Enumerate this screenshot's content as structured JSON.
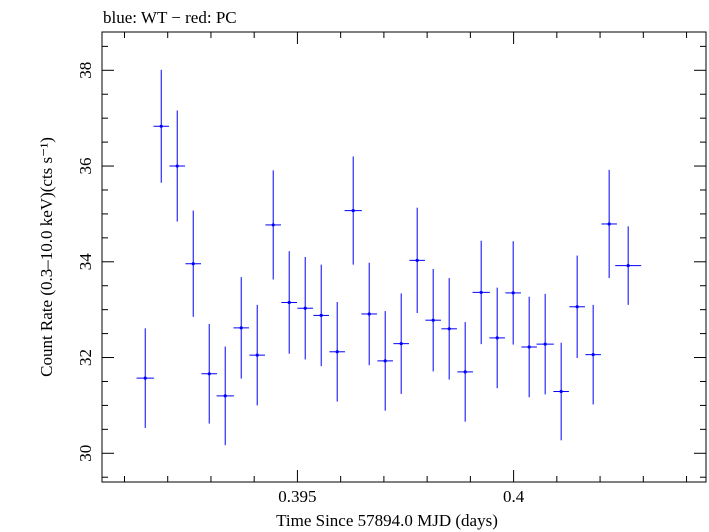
{
  "chart_data": {
    "type": "scatter",
    "title": "blue: WT − red: PC",
    "xlabel": "Time Since 57894.0 MJD (days)",
    "ylabel": "Count Rate (0.3–10.0 keV)(cts s⁻¹)",
    "xlim": [
      0.39048,
      0.40445
    ],
    "ylim": [
      29.4,
      38.8
    ],
    "xticks_major": [
      0.395,
      0.4
    ],
    "xtick_labels": [
      "0.395",
      "0.4"
    ],
    "xticks_minor": [
      0.391,
      0.392,
      0.393,
      0.394,
      0.396,
      0.397,
      0.398,
      0.399,
      0.401,
      0.402,
      0.403,
      0.404
    ],
    "yticks_major": [
      30,
      32,
      34,
      36,
      38
    ],
    "ytick_labels": [
      "30",
      "32",
      "34",
      "36",
      "38"
    ],
    "yticks_minor": [
      29.5,
      30.5,
      31,
      31.5,
      32.5,
      33,
      33.5,
      34.5,
      35,
      35.5,
      36.5,
      37,
      37.5,
      38.5
    ],
    "grid": false,
    "series": [
      {
        "color": "#0000ff",
        "points": [
          {
            "x": 0.39148,
            "xerr": 0.0002,
            "y": 31.57,
            "yerr": 1.04
          },
          {
            "x": 0.39185,
            "xerr": 0.00018,
            "y": 36.83,
            "yerr": 1.18
          },
          {
            "x": 0.39222,
            "xerr": 0.00018,
            "y": 36.0,
            "yerr": 1.16
          },
          {
            "x": 0.39259,
            "xerr": 0.00018,
            "y": 33.96,
            "yerr": 1.11
          },
          {
            "x": 0.39296,
            "xerr": 0.00018,
            "y": 31.66,
            "yerr": 1.04
          },
          {
            "x": 0.39333,
            "xerr": 0.0002,
            "y": 31.2,
            "yerr": 1.03
          },
          {
            "x": 0.3937,
            "xerr": 0.00018,
            "y": 32.62,
            "yerr": 1.06
          },
          {
            "x": 0.39407,
            "xerr": 0.00018,
            "y": 32.05,
            "yerr": 1.05
          },
          {
            "x": 0.39444,
            "xerr": 0.00018,
            "y": 34.77,
            "yerr": 1.14
          },
          {
            "x": 0.39481,
            "xerr": 0.00018,
            "y": 33.15,
            "yerr": 1.07
          },
          {
            "x": 0.39518,
            "xerr": 0.00018,
            "y": 33.03,
            "yerr": 1.07
          },
          {
            "x": 0.39555,
            "xerr": 0.00018,
            "y": 32.88,
            "yerr": 1.06
          },
          {
            "x": 0.39592,
            "xerr": 0.00018,
            "y": 32.12,
            "yerr": 1.04
          },
          {
            "x": 0.39629,
            "xerr": 0.0002,
            "y": 35.07,
            "yerr": 1.13
          },
          {
            "x": 0.39666,
            "xerr": 0.00018,
            "y": 32.91,
            "yerr": 1.07
          },
          {
            "x": 0.39703,
            "xerr": 0.00018,
            "y": 31.93,
            "yerr": 1.04
          },
          {
            "x": 0.3974,
            "xerr": 0.00018,
            "y": 32.29,
            "yerr": 1.05
          },
          {
            "x": 0.39777,
            "xerr": 0.00018,
            "y": 34.03,
            "yerr": 1.1
          },
          {
            "x": 0.39814,
            "xerr": 0.00018,
            "y": 32.78,
            "yerr": 1.07
          },
          {
            "x": 0.39851,
            "xerr": 0.00018,
            "y": 32.6,
            "yerr": 1.06
          },
          {
            "x": 0.39888,
            "xerr": 0.00018,
            "y": 31.7,
            "yerr": 1.04
          },
          {
            "x": 0.39925,
            "xerr": 0.0002,
            "y": 33.36,
            "yerr": 1.08
          },
          {
            "x": 0.39962,
            "xerr": 0.00018,
            "y": 32.41,
            "yerr": 1.05
          },
          {
            "x": 0.39999,
            "xerr": 0.00018,
            "y": 33.35,
            "yerr": 1.08
          },
          {
            "x": 0.40036,
            "xerr": 0.00018,
            "y": 32.22,
            "yerr": 1.05
          },
          {
            "x": 0.40073,
            "xerr": 0.0002,
            "y": 32.28,
            "yerr": 1.05
          },
          {
            "x": 0.4011,
            "xerr": 0.00018,
            "y": 31.29,
            "yerr": 1.02
          },
          {
            "x": 0.40147,
            "xerr": 0.00018,
            "y": 33.06,
            "yerr": 1.07
          },
          {
            "x": 0.40184,
            "xerr": 0.00018,
            "y": 32.06,
            "yerr": 1.04
          },
          {
            "x": 0.40221,
            "xerr": 0.00018,
            "y": 34.79,
            "yerr": 1.13
          },
          {
            "x": 0.40265,
            "xerr": 0.0003,
            "y": 33.92,
            "yerr": 0.82
          }
        ]
      }
    ]
  }
}
